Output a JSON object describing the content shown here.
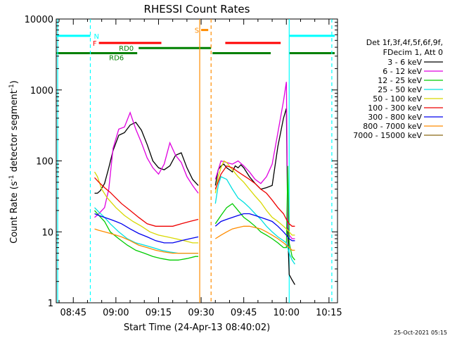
{
  "chart_data": {
    "type": "line",
    "title": "RHESSI Count Rates",
    "xlabel": "Start Time (24-Apr-13 08:40:02)",
    "ylabel_parts": [
      "Count Rate (s",
      "-1",
      " detector segment",
      "-1",
      ")"
    ],
    "y_scale": "log",
    "ylim": [
      1,
      10000
    ],
    "xlim_minutes_after_0840": [
      -1,
      98
    ],
    "x_ticks": [
      {
        "label": "08:45",
        "minutes": 5
      },
      {
        "label": "09:00",
        "minutes": 20
      },
      {
        "label": "09:15",
        "minutes": 35
      },
      {
        "label": "09:30",
        "minutes": 50
      },
      {
        "label": "09:45",
        "minutes": 65
      },
      {
        "label": "10:00",
        "minutes": 80
      },
      {
        "label": "10:15",
        "minutes": 95
      }
    ],
    "y_ticks": [
      {
        "label": "1",
        "value": 1
      },
      {
        "label": "10",
        "value": 10
      },
      {
        "label": "100",
        "value": 100
      },
      {
        "label": "1000",
        "value": 1000
      },
      {
        "label": "10000",
        "value": 10000
      }
    ],
    "legend_header": [
      "Det 1f,3f,4f,5f,6f,9f,",
      "FDecim 1, Att 0"
    ],
    "series": [
      {
        "name": "3 - 6 keV",
        "color": "#000000",
        "segments": [
          {
            "x": [
              12.5,
              13.5,
              14.5,
              16,
              17.5,
              19,
              21,
              23,
              25,
              27,
              29,
              31,
              33,
              35,
              37,
              39,
              41,
              43,
              45,
              47,
              49
            ],
            "y": [
              35,
              35,
              38,
              48,
              80,
              140,
              230,
              250,
              320,
              350,
              270,
              170,
              100,
              80,
              75,
              85,
              120,
              130,
              80,
              55,
              45
            ]
          },
          {
            "x": [
              55,
              56,
              57,
              58,
              59,
              60,
              61,
              62,
              63,
              64,
              65,
              67,
              69,
              71,
              73,
              75,
              77,
              79,
              80,
              80.5,
              81,
              82,
              83
            ],
            "y": [
              45,
              75,
              85,
              90,
              80,
              75,
              70,
              85,
              80,
              88,
              80,
              60,
              48,
              40,
              42,
              45,
              160,
              400,
              550,
              10,
              2.5,
              2.1,
              1.8
            ]
          }
        ]
      },
      {
        "name": "6 - 12 keV",
        "color": "#e000e0",
        "segments": [
          {
            "x": [
              12.5,
              14,
              16,
              17.5,
              19,
              21,
              23,
              25,
              27,
              29,
              31,
              33,
              35,
              37,
              39,
              41,
              43,
              45,
              47,
              49
            ],
            "y": [
              16,
              18,
              22,
              40,
              150,
              280,
              300,
              480,
              280,
              180,
              110,
              80,
              65,
              90,
              180,
              120,
              95,
              60,
              45,
              35
            ]
          },
          {
            "x": [
              55,
              57,
              59,
              61,
              63,
              65,
              67,
              69,
              71,
              73,
              75,
              77,
              79,
              80,
              80.5,
              81,
              82,
              83
            ],
            "y": [
              55,
              100,
              95,
              90,
              100,
              85,
              70,
              55,
              48,
              60,
              90,
              250,
              700,
              1300,
              12,
              9,
              8,
              8
            ]
          }
        ]
      },
      {
        "name": "12 - 25 keV",
        "color": "#00cc00",
        "segments": [
          {
            "x": [
              12.5,
              14,
              16,
              18,
              21,
              24,
              27,
              30,
              33,
              36,
              39,
              42,
              45,
              48,
              49
            ],
            "y": [
              20,
              17,
              14,
              10,
              8,
              6.5,
              5.5,
              5,
              4.5,
              4.2,
              4,
              4,
              4.2,
              4.5,
              4.5
            ]
          },
          {
            "x": [
              55,
              57,
              59,
              61,
              63,
              65,
              67,
              69,
              71,
              73,
              75,
              77,
              79,
              80,
              80.5,
              81,
              82,
              83
            ],
            "y": [
              13,
              17,
              22,
              25,
              20,
              16,
              14,
              12,
              10,
              9,
              8,
              7,
              6,
              6,
              85,
              7,
              4.5,
              4
            ]
          }
        ]
      },
      {
        "name": "25 - 50 keV",
        "color": "#00e0e0",
        "segments": [
          {
            "x": [
              12.5,
              14,
              16,
              18,
              21,
              24,
              27,
              30,
              33,
              36,
              39,
              42,
              45,
              48,
              49
            ],
            "y": [
              22,
              19,
              16,
              13,
              10,
              8,
              7,
              6.5,
              6,
              5.5,
              5.2,
              5,
              5,
              5,
              5
            ]
          },
          {
            "x": [
              55,
              56,
              57,
              59,
              61,
              63,
              65,
              67,
              69,
              71,
              73,
              75,
              77,
              79,
              80,
              81,
              82,
              83
            ],
            "y": [
              25,
              45,
              60,
              55,
              40,
              30,
              26,
              22,
              18,
              15,
              12,
              10,
              8.5,
              7.5,
              7,
              5,
              4,
              3.5
            ]
          }
        ]
      },
      {
        "name": "50 - 100 keV",
        "color": "#d8d800",
        "segments": [
          {
            "x": [
              12.5,
              13.5,
              15,
              17,
              20,
              23,
              26,
              29,
              32,
              35,
              38,
              41,
              44,
              47,
              49
            ],
            "y": [
              70,
              60,
              40,
              30,
              22,
              17,
              14,
              12,
              10,
              9,
              8.5,
              8,
              7.5,
              7,
              7
            ]
          },
          {
            "x": [
              55,
              56,
              57,
              58,
              59,
              61,
              63,
              65,
              67,
              69,
              71,
              73,
              75,
              77,
              79,
              80,
              81,
              82,
              83
            ],
            "y": [
              35,
              60,
              80,
              100,
              95,
              75,
              60,
              50,
              40,
              32,
              26,
              20,
              16,
              14,
              12,
              11,
              10,
              9,
              9
            ]
          }
        ]
      },
      {
        "name": "100 - 300 keV",
        "color": "#ee0000",
        "segments": [
          {
            "x": [
              12.5,
              14,
              16,
              18,
              20,
              22,
              25,
              28,
              31,
              34,
              37,
              40,
              43,
              46,
              49
            ],
            "y": [
              58,
              50,
              42,
              36,
              30,
              25,
              20,
              16,
              13,
              12,
              12,
              12,
              13,
              14,
              15
            ]
          },
          {
            "x": [
              55,
              57,
              59,
              61,
              63,
              65,
              67,
              69,
              71,
              73,
              75,
              77,
              79,
              80,
              81,
              82,
              83
            ],
            "y": [
              40,
              65,
              85,
              80,
              70,
              62,
              55,
              48,
              40,
              35,
              28,
              22,
              18,
              15,
              13,
              12,
              12
            ]
          }
        ]
      },
      {
        "name": "300 - 800 keV",
        "color": "#0000ee",
        "segments": [
          {
            "x": [
              12.5,
              14,
              16,
              18,
              20,
              22,
              25,
              28,
              31,
              34,
              37,
              40,
              43,
              46,
              49
            ],
            "y": [
              18,
              17,
              16,
              15,
              14,
              13,
              11,
              9.5,
              8.5,
              7.5,
              7,
              7,
              7.5,
              8,
              8.5
            ]
          },
          {
            "x": [
              55,
              57,
              59,
              61,
              63,
              65,
              67,
              69,
              71,
              73,
              75,
              77,
              79,
              80,
              81,
              82,
              83
            ],
            "y": [
              12,
              14,
              15,
              16,
              17,
              18,
              18,
              17,
              16,
              15,
              14,
              12,
              10,
              9,
              8,
              7.5,
              7.5
            ]
          }
        ]
      },
      {
        "name": "800 - 7000 keV",
        "color": "#ff8c00",
        "segments": [
          {
            "x": [
              12.5,
              14,
              16,
              18,
              20,
              22,
              25,
              28,
              31,
              34,
              37,
              40,
              43,
              46,
              49
            ],
            "y": [
              11,
              10.5,
              10,
              9.5,
              9,
              8.5,
              7.5,
              6.5,
              6,
              5.5,
              5.2,
              5,
              5,
              5,
              5
            ]
          },
          {
            "x": [
              55,
              57,
              59,
              61,
              63,
              65,
              67,
              69,
              71,
              73,
              75,
              77,
              79,
              80,
              81,
              82,
              83
            ],
            "y": [
              8,
              9,
              10,
              11,
              11.5,
              12,
              12,
              11.5,
              11,
              10,
              9,
              8,
              7,
              6.5,
              6,
              5.5,
              5.5
            ]
          }
        ]
      },
      {
        "name": "7000 - 15000 keV",
        "color": "#8b6914",
        "segments": []
      }
    ],
    "state_bars": [
      {
        "label": "N",
        "color": "#00ffff",
        "segments": [
          [
            -1,
            11
          ],
          [
            81,
            97
          ]
        ],
        "value_level": 5800
      },
      {
        "label": "S",
        "color": "#ff8c00",
        "segments": [
          [
            50,
            52.5
          ]
        ],
        "value_level": 7000
      },
      {
        "label": "F",
        "color": "#ff0000",
        "segments": [
          [
            14,
            36
          ],
          [
            58.5,
            78
          ]
        ],
        "value_level": 4600
      },
      {
        "label": "RD0",
        "color": "#008000",
        "segments": [
          [
            28,
            53.5
          ]
        ],
        "value_level": 3900
      },
      {
        "label": "RD6",
        "color": "#008000",
        "segments": [
          [
            -1,
            27.5
          ],
          [
            54,
            74.5
          ],
          [
            81,
            97
          ]
        ],
        "value_level": 3300
      }
    ],
    "vertical_markers": [
      {
        "minutes": -0.5,
        "color": "#00ffff",
        "style": "solid"
      },
      {
        "minutes": 11,
        "color": "#00ffff",
        "style": "dashed"
      },
      {
        "minutes": 81,
        "color": "#00ffff",
        "style": "solid"
      },
      {
        "minutes": 96,
        "color": "#00ffff",
        "style": "dashed"
      },
      {
        "minutes": 49.5,
        "color": "#ff8c00",
        "style": "solid"
      },
      {
        "minutes": 53.5,
        "color": "#ff8c00",
        "style": "dashed"
      }
    ],
    "footer_stamp": "25-Oct-2021 05:15"
  }
}
